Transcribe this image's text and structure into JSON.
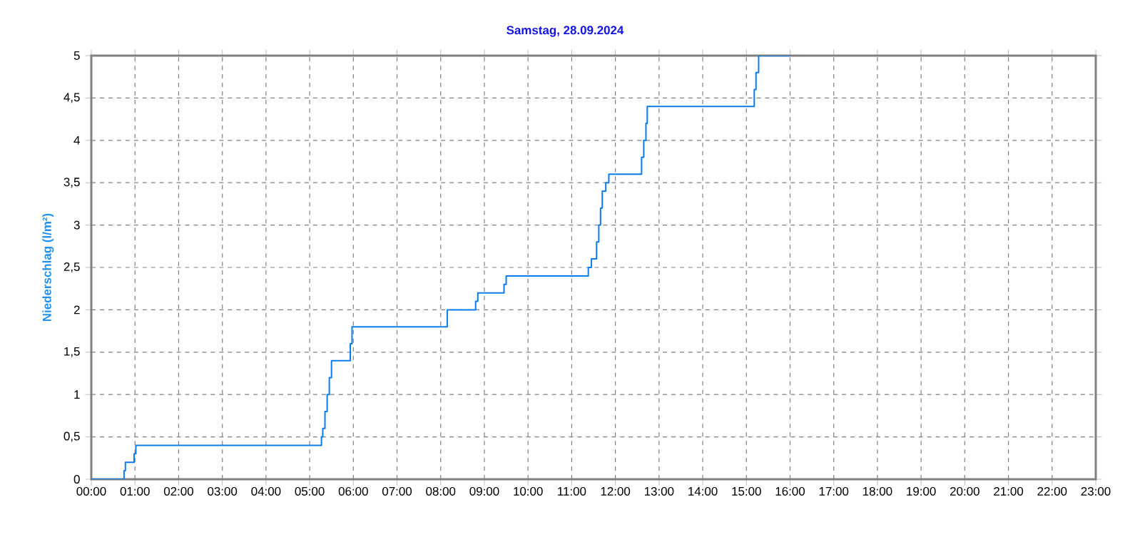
{
  "chart_data": {
    "type": "step",
    "title": "Samstag, 28.09.2024",
    "ylabel": "Niederschlag  (l/m²)",
    "x": [
      0,
      0.75,
      0.78,
      0.98,
      1.02,
      5.27,
      5.3,
      5.35,
      5.4,
      5.45,
      5.5,
      5.93,
      5.97,
      8.15,
      8.8,
      8.85,
      9.45,
      9.5,
      11.38,
      11.45,
      11.57,
      11.62,
      11.66,
      11.7,
      11.78,
      11.85,
      12.6,
      12.65,
      12.7,
      12.73,
      15.18,
      15.22,
      15.28,
      16.0
    ],
    "values": [
      0,
      0.1,
      0.2,
      0.3,
      0.4,
      0.5,
      0.6,
      0.8,
      1.0,
      1.2,
      1.4,
      1.6,
      1.8,
      2.0,
      2.1,
      2.2,
      2.3,
      2.4,
      2.5,
      2.6,
      2.8,
      3.0,
      3.2,
      3.4,
      3.5,
      3.6,
      3.8,
      4.0,
      4.2,
      4.4,
      4.6,
      4.8,
      5.0,
      5.0
    ],
    "color": "#0a7cf0",
    "xlim": [
      0,
      23
    ],
    "xticks": [
      {
        "value": 0,
        "label": "00:00"
      },
      {
        "value": 1,
        "label": "01:00"
      },
      {
        "value": 2,
        "label": "02:00"
      },
      {
        "value": 3,
        "label": "03:00"
      },
      {
        "value": 4,
        "label": "04:00"
      },
      {
        "value": 5,
        "label": "05:00"
      },
      {
        "value": 6,
        "label": "06:00"
      },
      {
        "value": 7,
        "label": "07:00"
      },
      {
        "value": 8,
        "label": "08:00"
      },
      {
        "value": 9,
        "label": "09:00"
      },
      {
        "value": 10,
        "label": "10:00"
      },
      {
        "value": 11,
        "label": "11:00"
      },
      {
        "value": 12,
        "label": "12:00"
      },
      {
        "value": 13,
        "label": "13:00"
      },
      {
        "value": 14,
        "label": "14:00"
      },
      {
        "value": 15,
        "label": "15:00"
      },
      {
        "value": 16,
        "label": "16:00"
      },
      {
        "value": 17,
        "label": "17:00"
      },
      {
        "value": 18,
        "label": "18:00"
      },
      {
        "value": 19,
        "label": "19:00"
      },
      {
        "value": 20,
        "label": "20:00"
      },
      {
        "value": 21,
        "label": "21:00"
      },
      {
        "value": 22,
        "label": "22:00"
      },
      {
        "value": 23,
        "label": "23:00"
      }
    ],
    "ylim": [
      0,
      5
    ],
    "yticks": [
      0,
      {
        "value": 0.5,
        "label": "0,5"
      },
      1,
      {
        "value": 1.5,
        "label": "1,5"
      },
      2,
      {
        "value": 2.5,
        "label": "2,5"
      },
      3,
      {
        "value": 3.5,
        "label": "3,5"
      },
      4,
      {
        "value": 4.5,
        "label": "4,5"
      },
      5
    ],
    "grid": true,
    "marker": "none",
    "line_style": "solid"
  }
}
